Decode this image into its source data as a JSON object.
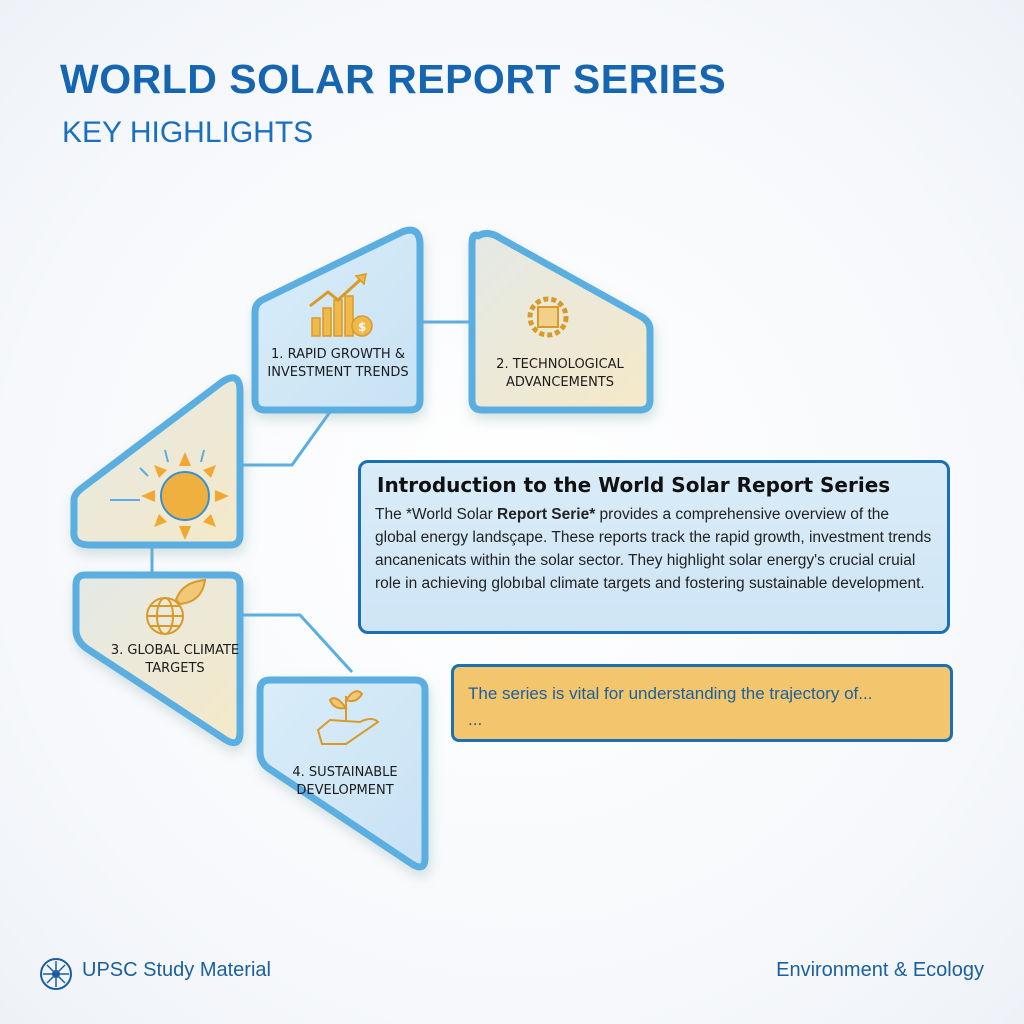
{
  "header": {
    "title": "WORLD SOLAR REPORT SERIES",
    "subtitle": "KEY HIGHLIGHTS"
  },
  "highlights": [
    {
      "label": "1. RAPID GROWTH & INVESTMENT TRENDS",
      "icon": "growth-chart-dollar-icon"
    },
    {
      "label": "2. TECHNOLOGICAL ADVANCEMENTS",
      "icon": "chip-gear-icon"
    },
    {
      "label": "",
      "icon": "sun-icon"
    },
    {
      "label": "3. GLOBAL CLIMATE TARGETS",
      "icon": "globe-leaf-icon"
    },
    {
      "label": "4. SUSTAINABLE DEVELOPMENT",
      "icon": "hand-sprout-icon"
    }
  ],
  "intro": {
    "title": "Introduction to the World Solar Report Series",
    "body_pre": "The *World Solar ",
    "body_bold": "Report Serie*",
    "body_post": " provides a comprehensive overview of the global energy landsçape. These reports track the rapid growth, investment trends ancanenicats within  the solar sector. They highlight solar energy's crucial cruial role in achieving globıbal climate targets and fostering sustainable development."
  },
  "note": {
    "text": "The series is vital for understanding the trajectory of...",
    "continuation": "..."
  },
  "footer": {
    "left": "UPSC Study Material",
    "right": "Environment & Ecology"
  },
  "colors": {
    "primary": "#1565b0",
    "border": "#5aaee0",
    "panel_blue": "#d4eaf7",
    "panel_beige": "#efe8cf",
    "icon_gold": "#e0a030",
    "note_fill": "#f3c66e"
  }
}
